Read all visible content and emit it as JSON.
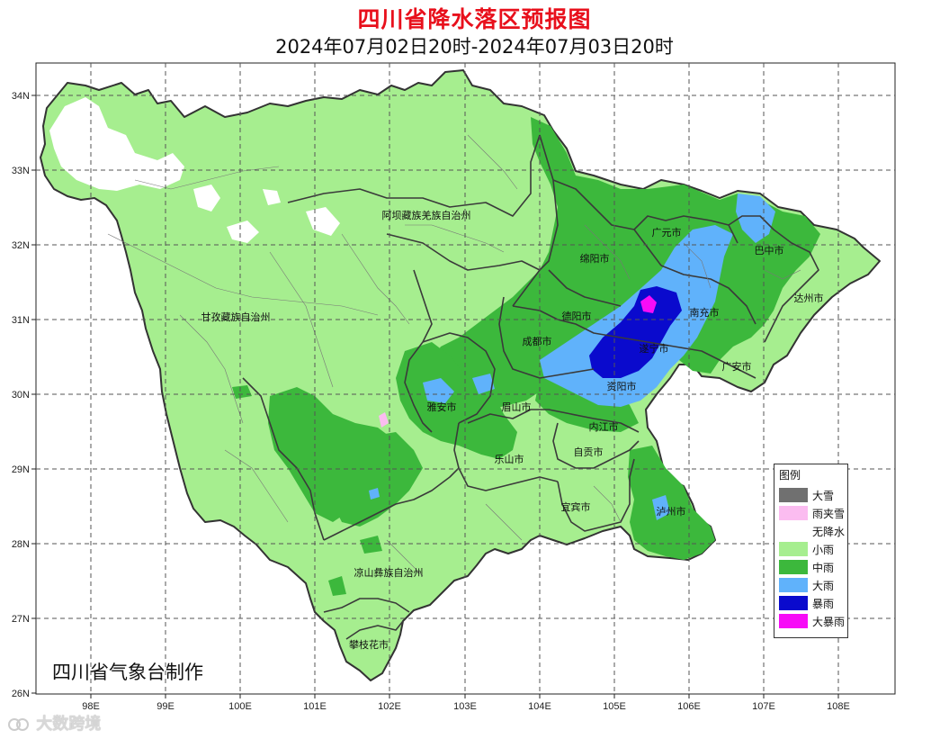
{
  "title": "四川省降水落区预报图",
  "subtitle": "2024年07月02日20时-2024年07月03日20时",
  "credit": "四川省气象台制作",
  "watermark": "大数跨境",
  "legend": {
    "title": "图例",
    "items": [
      {
        "label": "大雪",
        "color": "#707070"
      },
      {
        "label": "雨夹雪",
        "color": "#fbbcf0"
      },
      {
        "label": "无降水",
        "color": "#ffffff"
      },
      {
        "label": "小雨",
        "color": "#a6ee8f"
      },
      {
        "label": "中雨",
        "color": "#3cb83c"
      },
      {
        "label": "大雨",
        "color": "#60b2fb"
      },
      {
        "label": "暴雨",
        "color": "#0a0acd"
      },
      {
        "label": "大暴雨",
        "color": "#f70cf7"
      }
    ]
  },
  "axes": {
    "lat_labels": [
      "34N",
      "33N",
      "32N",
      "31N",
      "30N",
      "29N",
      "28N",
      "27N",
      "26N"
    ],
    "lon_labels": [
      "98E",
      "99E",
      "100E",
      "101E",
      "102E",
      "103E",
      "104E",
      "105E",
      "106E",
      "107E",
      "108E"
    ]
  },
  "regions": [
    "阿坝藏族羌族自治州",
    "广元市",
    "巴中市",
    "绵阳市",
    "达州市",
    "甘孜藏族自治州",
    "德阳市",
    "南充市",
    "成都市",
    "遂宁市",
    "广安市",
    "资阳市",
    "雅安市",
    "眉山市",
    "内江市",
    "乐山市",
    "自贡市",
    "宜宾市",
    "泸州市",
    "凉山彝族自治州",
    "攀枝花市"
  ]
}
